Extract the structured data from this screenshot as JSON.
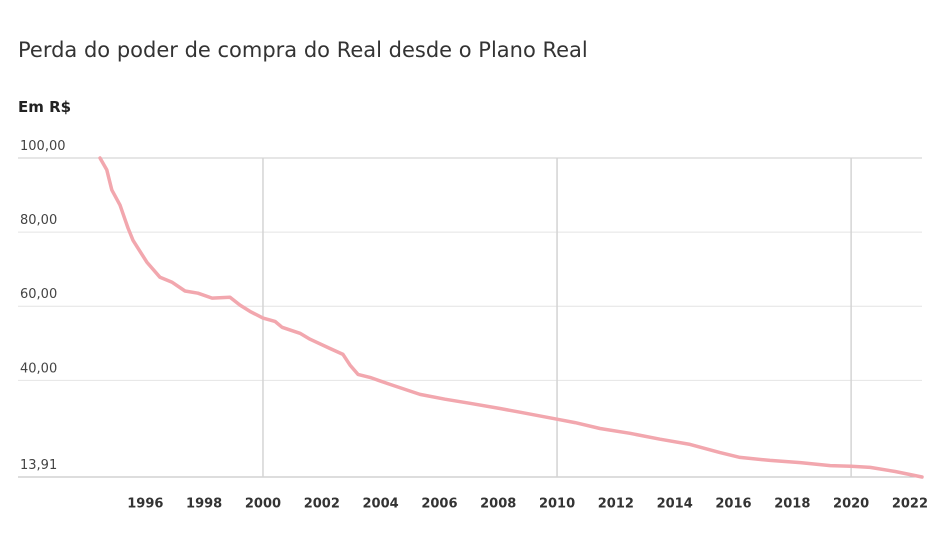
{
  "chart_data": {
    "type": "line",
    "title": "Perda do poder de compra do Real desde o Plano Real",
    "subtitle": "Em R$",
    "x": [
      1994.46,
      1994.69,
      1994.86,
      1995.14,
      1995.41,
      1995.58,
      1996.05,
      1996.5,
      1996.9,
      1997.35,
      1997.79,
      1998.27,
      1998.88,
      1999.22,
      1999.56,
      2000.0,
      2000.41,
      2000.65,
      2001.26,
      2001.6,
      2002.28,
      2002.72,
      2002.96,
      2003.23,
      2003.64,
      2004.32,
      2005.34,
      2006.19,
      2007.04,
      2008.06,
      2008.74,
      2010.0,
      2010.61,
      2011.46,
      2012.48,
      2013.5,
      2014.52,
      2015.54,
      2016.22,
      2017.24,
      2018.27,
      2019.29,
      2020.0,
      2020.65,
      2021.5,
      2022.41
    ],
    "series": [
      {
        "color": "#f2a7ae",
        "values": [
          100,
          96.8,
          91.4,
          87.3,
          81.1,
          77.8,
          71.9,
          67.8,
          66.5,
          64.1,
          63.5,
          62.2,
          62.4,
          60.3,
          58.6,
          56.8,
          55.9,
          54.3,
          52.7,
          51.1,
          48.6,
          47.0,
          44.1,
          41.6,
          40.8,
          38.9,
          36.2,
          34.9,
          33.8,
          32.4,
          31.4,
          29.5,
          28.6,
          27.0,
          25.7,
          24.1,
          22.7,
          20.5,
          19.2,
          18.4,
          17.8,
          17.0,
          16.8,
          16.5,
          15.4,
          13.91
        ]
      }
    ],
    "xlim": [
      1991.67,
      2022.41
    ],
    "xticks": [
      1996,
      1998,
      2000,
      2002,
      2004,
      2006,
      2008,
      2010,
      2012,
      2014,
      2016,
      2018,
      2020,
      2022
    ],
    "ylim": [
      13.91,
      100
    ],
    "yticks": [
      {
        "value": 13.91,
        "label": "13,91"
      },
      {
        "value": 40,
        "label": "40,00"
      },
      {
        "value": 60,
        "label": "60,00"
      },
      {
        "value": 80,
        "label": "80,00"
      },
      {
        "value": 100,
        "label": "100,00"
      }
    ],
    "grid": true
  }
}
